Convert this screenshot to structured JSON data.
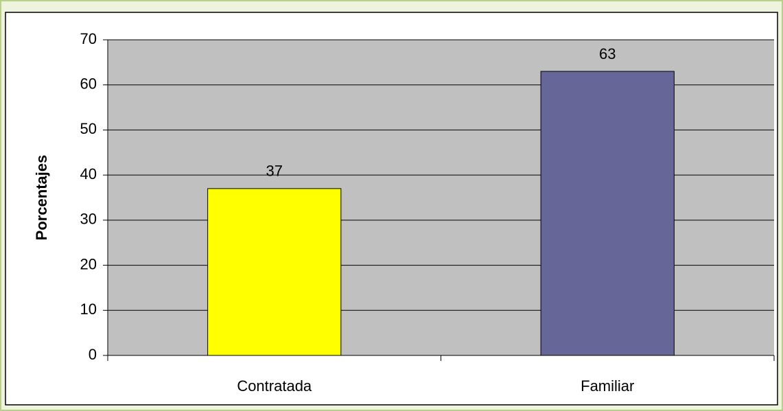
{
  "chart_data": {
    "type": "bar",
    "y_label": "Porcentajes",
    "categories": [
      "Contratada",
      "Familiar"
    ],
    "values": [
      37,
      63
    ],
    "colors": [
      "#ffff00",
      "#666699"
    ],
    "ylim": [
      0,
      70
    ],
    "yticks": [
      0,
      10,
      20,
      30,
      40,
      50,
      60,
      70
    ],
    "grid": true
  }
}
